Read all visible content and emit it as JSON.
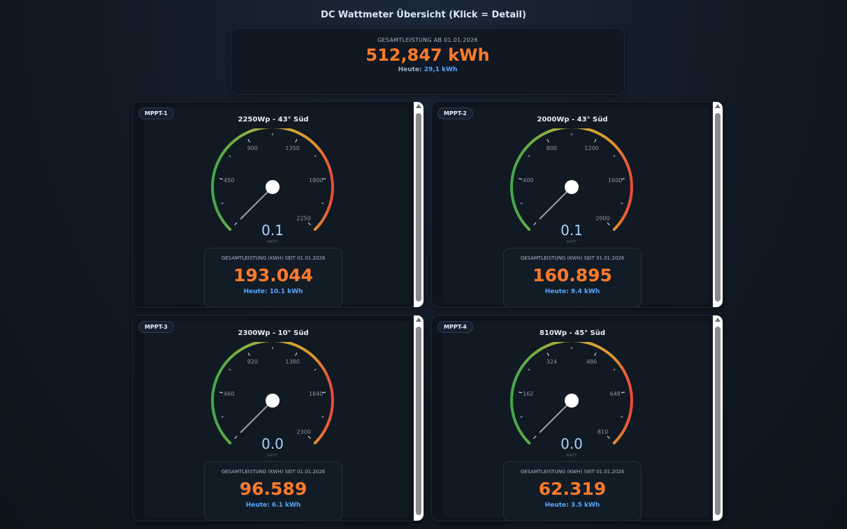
{
  "page": {
    "title": "DC Wattmeter Übersicht (Klick = Detail)"
  },
  "summary": {
    "label": "GESAMTLEISTUNG AB 01.01.2026",
    "value": "512,847 kWh",
    "today_prefix": "Heute:",
    "today_value": "29,1 kWh"
  },
  "colors": {
    "accent_orange": "#ff7a2a",
    "accent_blue": "#59a6ff",
    "gauge_low": "#3fa84a",
    "gauge_mid": "#c8b33a",
    "gauge_high": "#e84a3a"
  },
  "cards": [
    {
      "badge": "MPPT-1",
      "title": "2250Wp - 43° Süd",
      "gauge": {
        "min": 0,
        "max": 2250,
        "value": 0.1,
        "labels": [
          "450",
          "900",
          "1350",
          "1800",
          "2250"
        ]
      },
      "value": "0.1",
      "unit": "WATT",
      "energy_label": "GESAMTLEISTUNG (KWH) SEIT 01.01.2026",
      "energy_value": "193.044",
      "today": "Heute: 10.1 kWh"
    },
    {
      "badge": "MPPT-2",
      "title": "2000Wp - 43° Süd",
      "gauge": {
        "min": 0,
        "max": 2000,
        "value": 0.1,
        "labels": [
          "400",
          "800",
          "1200",
          "1600",
          "2000"
        ]
      },
      "value": "0.1",
      "unit": "WATT",
      "energy_label": "GESAMTLEISTUNG (KWH) SEIT 01.01.2026",
      "energy_value": "160.895",
      "today": "Heute: 9.4 kWh"
    },
    {
      "badge": "MPPT-3",
      "title": "2300Wp - 10° Süd",
      "gauge": {
        "min": 0,
        "max": 2300,
        "value": 0.0,
        "labels": [
          "460",
          "920",
          "1380",
          "1840",
          "2300"
        ]
      },
      "value": "0.0",
      "unit": "WATT",
      "energy_label": "GESAMTLEISTUNG (KWH) SEIT 01.01.2026",
      "energy_value": "96.589",
      "today": "Heute: 6.1 kWh"
    },
    {
      "badge": "MPPT-4",
      "title": "810Wp - 45° Süd",
      "gauge": {
        "min": 0,
        "max": 810,
        "value": 0.0,
        "labels": [
          "162",
          "324",
          "486",
          "648",
          "810"
        ]
      },
      "value": "0.0",
      "unit": "WATT",
      "energy_label": "GESAMTLEISTUNG (KWH) SEIT 01.01.2026",
      "energy_value": "62.319",
      "today": "Heute: 3.5 kWh"
    }
  ]
}
